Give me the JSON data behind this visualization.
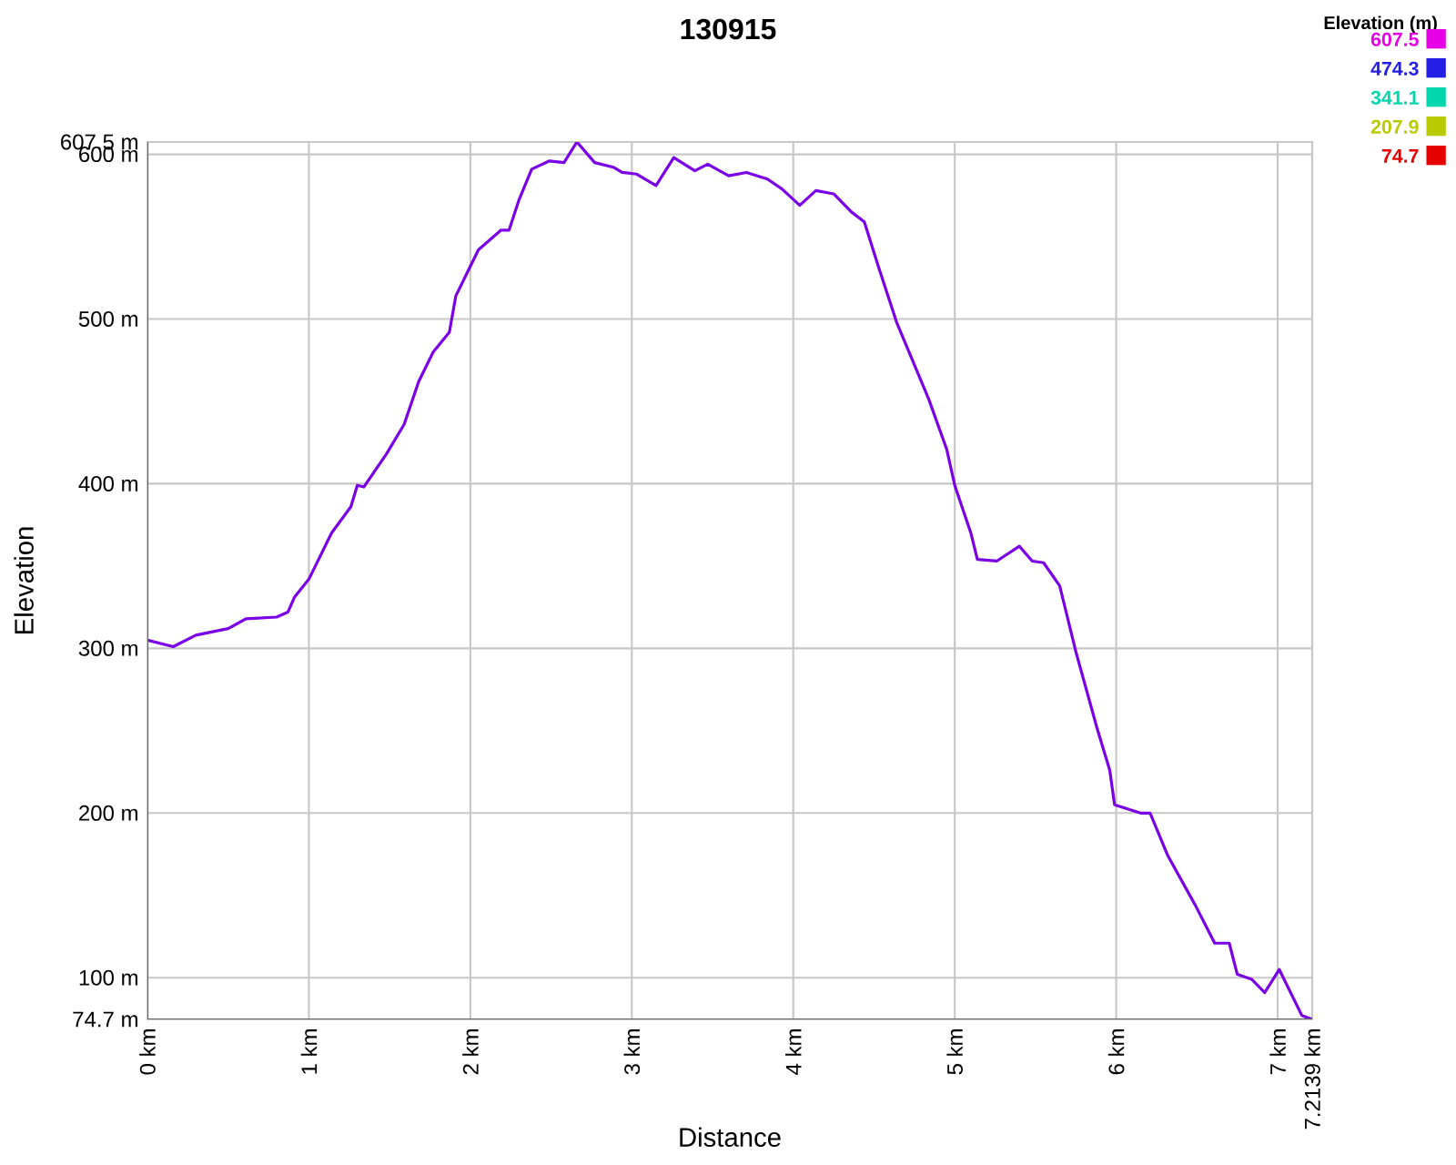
{
  "chart_data": {
    "type": "line",
    "title": "130915",
    "xlabel": "Distance",
    "ylabel": "Elevation",
    "clabel": "Elevation (m)",
    "x": [
      0,
      0.16,
      0.3,
      0.5,
      0.61,
      0.8,
      0.87,
      0.91,
      1.0,
      1.14,
      1.26,
      1.3,
      1.34,
      1.48,
      1.59,
      1.68,
      1.77,
      1.87,
      1.91,
      1.98,
      2.05,
      2.19,
      2.24,
      2.3,
      2.38,
      2.49,
      2.58,
      2.66,
      2.77,
      2.89,
      2.94,
      3.03,
      3.15,
      3.26,
      3.39,
      3.47,
      3.6,
      3.71,
      3.84,
      3.93,
      4.04,
      4.14,
      4.25,
      4.36,
      4.44,
      4.53,
      4.64,
      4.84,
      4.95,
      5.0,
      5.1,
      5.14,
      5.26,
      5.4,
      5.48,
      5.55,
      5.65,
      5.75,
      5.88,
      5.96,
      5.99,
      6.15,
      6.21,
      6.32,
      6.49,
      6.61,
      6.7,
      6.75,
      6.84,
      6.92,
      7.01,
      7.15,
      7.2139
    ],
    "color": "#7a00e6",
    "values": [
      305,
      301,
      308,
      312,
      318,
      319,
      322,
      331,
      342,
      370,
      386,
      399,
      398,
      418,
      436,
      462,
      480,
      492,
      514,
      528,
      542,
      554,
      554,
      572,
      591,
      596,
      595,
      607.5,
      595,
      592,
      589,
      588,
      581,
      598,
      590,
      594,
      587,
      589,
      585,
      579,
      569,
      578,
      576,
      565,
      559,
      531,
      498,
      451,
      421,
      399,
      370,
      354,
      353,
      362,
      353,
      352,
      338,
      298,
      252,
      226,
      205,
      200,
      200,
      174,
      144,
      121,
      121,
      102,
      99,
      91,
      105,
      77,
      74.7
    ],
    "xlim": [
      0,
      7.2139
    ],
    "xticks": [
      {
        "value": 0,
        "label": "0 km"
      },
      {
        "value": 1,
        "label": "1 km"
      },
      {
        "value": 2,
        "label": "2 km"
      },
      {
        "value": 3,
        "label": "3 km"
      },
      {
        "value": 4,
        "label": "4 km"
      },
      {
        "value": 5,
        "label": "5 km"
      },
      {
        "value": 6,
        "label": "6 km"
      },
      {
        "value": 7,
        "label": "7 km"
      },
      {
        "value": 7.2139,
        "label": "7.2139 km"
      }
    ],
    "ylim": [
      74.7,
      607.5
    ],
    "yticks": [
      {
        "value": 74.7,
        "label": "74.7 m"
      },
      {
        "value": 100,
        "label": "100 m"
      },
      {
        "value": 200,
        "label": "200 m"
      },
      {
        "value": 300,
        "label": "300 m"
      },
      {
        "value": 400,
        "label": "400 m"
      },
      {
        "value": 500,
        "label": "500 m"
      },
      {
        "value": 600,
        "label": "600 m"
      },
      {
        "value": 607.5,
        "label": "607.5 m"
      }
    ],
    "annotations": [
      "607.5",
      "474.3",
      "341.1",
      "207.9",
      "74.7"
    ],
    "grid": true,
    "marker": "none",
    "line_style": "solid"
  }
}
